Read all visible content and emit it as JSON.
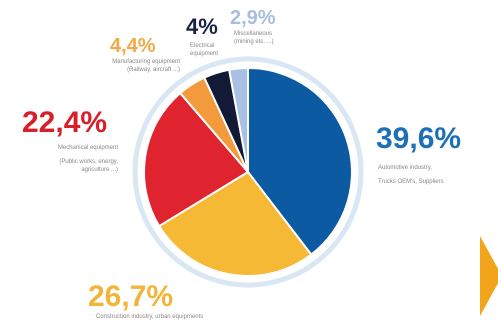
{
  "chart_data": {
    "type": "pie",
    "slices": [
      {
        "label": "39,6%",
        "value": 39.6,
        "color": "#0b5aa2",
        "caption_lines": [
          "Automotive industry,",
          "Trucks OEM's, Suppliers"
        ]
      },
      {
        "label": "26,7%",
        "value": 26.7,
        "color": "#f6b935",
        "caption_lines": [
          "Construction industry, urban equipments"
        ]
      },
      {
        "label": "22,4%",
        "value": 22.4,
        "color": "#e0242f",
        "caption_lines": [
          "Mechanical equipment",
          "(Public works, energy,",
          "agriculture ...)"
        ]
      },
      {
        "label": "4,4%",
        "value": 4.4,
        "color": "#f39a3c",
        "caption_lines": [
          "Manufacturing equipment",
          "(Railway, aircraft ...)"
        ]
      },
      {
        "label": "4%",
        "value": 4.0,
        "color": "#131a35",
        "caption_lines": [
          "Electrical",
          "equipment"
        ]
      },
      {
        "label": "2,9%",
        "value": 2.9,
        "color": "#a9bfe3",
        "caption_lines": [
          "Miscellaneous",
          "(mining etc. ...)"
        ]
      }
    ],
    "ring_color": "#d9e6f3",
    "legend": "none"
  },
  "colors": {
    "label_blue": "#1d6fb8",
    "label_yellow": "#f3b43a",
    "label_red": "#d81f2a",
    "label_orange": "#f2a94a",
    "label_navy": "#1a2244",
    "label_lightblue": "#a8bde0",
    "arrow": "#f2a51a"
  },
  "nav": {
    "icon": "play-arrow-icon"
  }
}
